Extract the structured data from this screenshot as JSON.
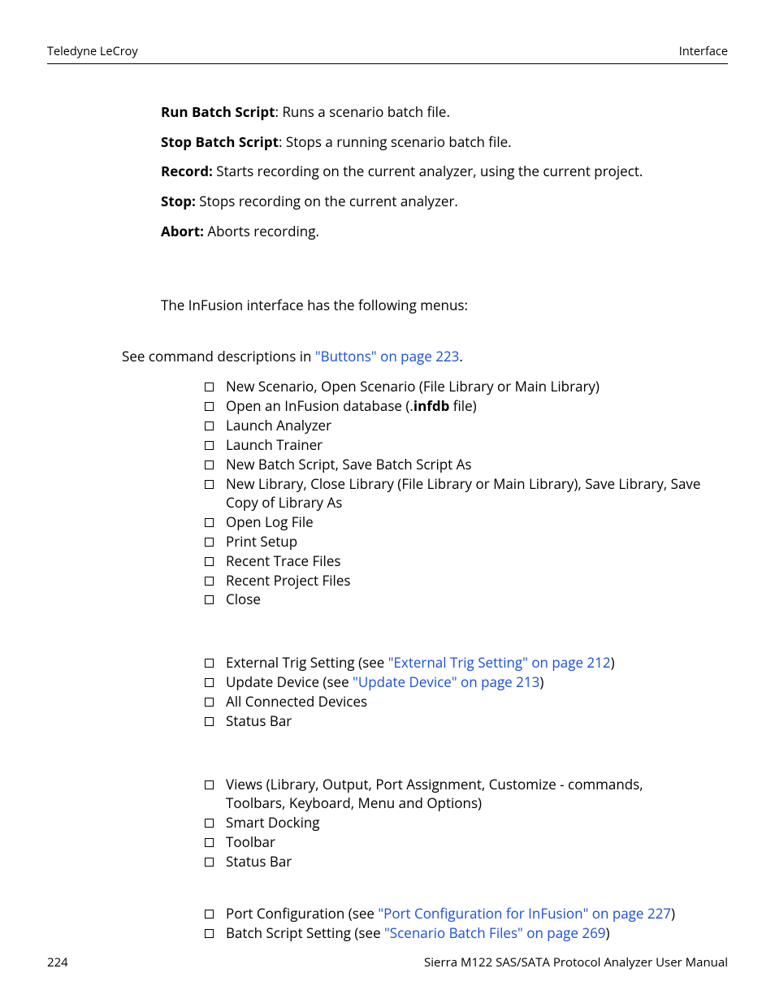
{
  "header": {
    "left": "Teledyne LeCroy",
    "right": "Interface"
  },
  "definitions": [
    {
      "term": "Run Batch Script",
      "sep": ": ",
      "desc": "Runs a scenario batch file."
    },
    {
      "term": "Stop Batch Script",
      "sep": ": ",
      "desc": "Stops a running scenario batch file."
    },
    {
      "term": "Record:",
      "sep": " ",
      "desc": "Starts recording on the current analyzer, using the current project."
    },
    {
      "term": "Stop:",
      "sep": " ",
      "desc": "Stops recording on the current analyzer."
    },
    {
      "term": "Abort:",
      "sep": " ",
      "desc": "Aborts recording."
    }
  ],
  "intro": "The InFusion interface has the following menus:",
  "see": {
    "prefix": "See command descriptions in ",
    "link": "\"Buttons\" on page 223",
    "suffix": "."
  },
  "group1": {
    "items": [
      {
        "text": "New Scenario, Open Scenario (File Library or Main Library)"
      },
      {
        "prefix": "Open an InFusion database (.",
        "bold": "infdb",
        "suffix": " file)"
      },
      {
        "text": "Launch Analyzer"
      },
      {
        "text": "Launch Trainer"
      },
      {
        "text": "New Batch Script, Save Batch Script As"
      },
      {
        "text": "New Library, Close Library (File Library or Main Library), Save Library, Save Copy of Library As"
      },
      {
        "text": "Open Log File"
      },
      {
        "text": "Print Setup"
      },
      {
        "text": "Recent Trace Files"
      },
      {
        "text": "Recent Project Files"
      },
      {
        "text": "Close"
      }
    ]
  },
  "group2": {
    "items": [
      {
        "prefix": "External Trig Setting (see ",
        "link": "\"External Trig Setting\" on page 212",
        "suffix": ")"
      },
      {
        "prefix": "Update Device (see ",
        "link": "\"Update Device\" on page 213",
        "suffix": ")"
      },
      {
        "text": "All Connected Devices"
      },
      {
        "text": "Status Bar"
      }
    ]
  },
  "group3": {
    "items": [
      {
        "text": "Views (Library, Output, Port Assignment, Customize - commands, Toolbars, Keyboard, Menu and Options)"
      },
      {
        "text": "Smart Docking"
      },
      {
        "text": "Toolbar"
      },
      {
        "text": "Status Bar"
      }
    ]
  },
  "group4": {
    "items": [
      {
        "prefix": "Port Configuration (see ",
        "link": "\"Port Configuration for InFusion\" on page 227",
        "suffix": ")"
      },
      {
        "prefix": "Batch Script Setting (see ",
        "link": "\"Scenario Batch Files\" on page 269",
        "suffix": ")"
      }
    ]
  },
  "footer": {
    "page": "224",
    "title": "Sierra M122 SAS/SATA Protocol Analyzer User Manual"
  },
  "colors": {
    "text": "#000000",
    "link": "#1a4fd6",
    "bg": "#ffffff"
  }
}
